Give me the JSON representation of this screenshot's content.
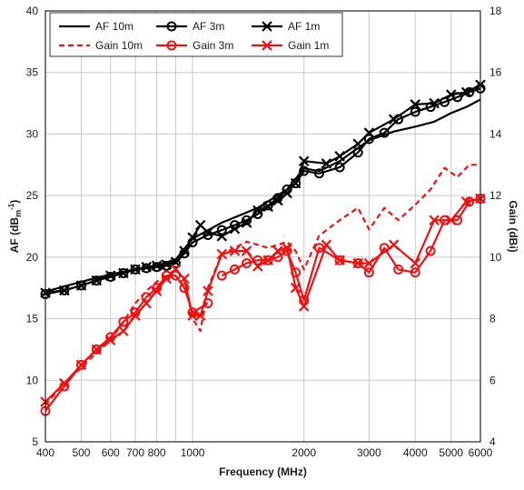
{
  "chart_data": {
    "type": "line",
    "xlabel": "Frequency (MHz)",
    "ylabel_left": "AF (dB",
    "ylabel_left_unit": "m",
    "ylabel_left_exp": "-1",
    "ylabel_left_close": ")",
    "ylabel_right": "Gain (dBi)",
    "x_scale": "log",
    "xlim": [
      400,
      6000
    ],
    "ylim_left": [
      5,
      40
    ],
    "ylim_right": [
      4,
      18
    ],
    "grid": true,
    "legend_position": "top-left",
    "x_ticks": [
      {
        "value": 400,
        "label": "400"
      },
      {
        "value": 500,
        "label": "500"
      },
      {
        "value": 600,
        "label": "600"
      },
      {
        "value": 700,
        "label": "700"
      },
      {
        "value": 800,
        "label": "800"
      },
      {
        "value": 1000,
        "label": "1000"
      },
      {
        "value": 2000,
        "label": "2000"
      },
      {
        "value": 3000,
        "label": "3000"
      },
      {
        "value": 4000,
        "label": "4000"
      },
      {
        "value": 5000,
        "label": "5000"
      },
      {
        "value": 6000,
        "label": "6000"
      }
    ],
    "x_minor_grid": [
      900
    ],
    "y_left_ticks": [
      5,
      10,
      15,
      20,
      25,
      30,
      35,
      40
    ],
    "y_right_ticks": [
      4,
      6,
      8,
      10,
      12,
      14,
      16,
      18
    ],
    "series": [
      {
        "name": "AF 10m",
        "axis": "left",
        "color": "#000000",
        "dash": "solid",
        "marker": "none",
        "x": [
          400,
          500,
          600,
          700,
          800,
          900,
          1000,
          1200,
          1500,
          1800,
          2000,
          2200,
          2500,
          3000,
          3500,
          4000,
          4500,
          5000,
          5500,
          6000
        ],
        "y": [
          17.2,
          18.0,
          18.6,
          19.0,
          19.3,
          19.8,
          21.5,
          22.8,
          24.0,
          25.5,
          27.2,
          27.0,
          27.8,
          29.5,
          30.2,
          30.6,
          31.0,
          31.7,
          32.2,
          32.8
        ]
      },
      {
        "name": "AF 3m",
        "axis": "left",
        "color": "#000000",
        "dash": "solid",
        "marker": "circle",
        "x": [
          400,
          450,
          500,
          550,
          600,
          650,
          700,
          750,
          800,
          850,
          900,
          950,
          1000,
          1100,
          1200,
          1300,
          1400,
          1500,
          1600,
          1700,
          1800,
          1900,
          2000,
          2200,
          2500,
          2800,
          3000,
          3300,
          3600,
          4000,
          4400,
          4800,
          5200,
          5600,
          6000
        ],
        "y": [
          17.0,
          17.3,
          17.7,
          18.1,
          18.4,
          18.7,
          19.0,
          19.1,
          19.2,
          19.3,
          19.5,
          20.3,
          21.2,
          21.8,
          22.2,
          22.6,
          23.0,
          23.5,
          24.2,
          24.8,
          25.5,
          26.0,
          27.0,
          26.8,
          27.3,
          28.5,
          29.6,
          30.1,
          31.2,
          31.8,
          32.2,
          32.6,
          33.0,
          33.4,
          33.7
        ]
      },
      {
        "name": "AF 1m",
        "axis": "left",
        "color": "#000000",
        "dash": "solid",
        "marker": "x",
        "x": [
          400,
          450,
          500,
          550,
          600,
          650,
          700,
          750,
          800,
          850,
          900,
          950,
          1000,
          1050,
          1100,
          1200,
          1300,
          1400,
          1500,
          1600,
          1700,
          1800,
          1900,
          2000,
          2300,
          2500,
          2800,
          3000,
          3500,
          4000,
          4500,
          5000,
          5500,
          6000
        ],
        "y": [
          17.1,
          17.3,
          17.7,
          18.1,
          18.5,
          18.7,
          19.0,
          19.2,
          19.3,
          19.4,
          19.6,
          20.5,
          21.6,
          22.6,
          22.0,
          21.7,
          22.3,
          22.8,
          23.8,
          24.1,
          24.6,
          25.2,
          26.0,
          27.8,
          27.6,
          28.2,
          29.2,
          30.1,
          31.2,
          32.4,
          32.5,
          33.2,
          33.4,
          34.0
        ]
      },
      {
        "name": "Gain 10m",
        "axis": "right",
        "color": "#ee1111",
        "dash": "dashed",
        "marker": "none",
        "x": [
          400,
          450,
          500,
          550,
          600,
          650,
          700,
          750,
          800,
          850,
          900,
          950,
          1000,
          1050,
          1100,
          1200,
          1300,
          1400,
          1500,
          1600,
          1700,
          1800,
          1900,
          2000,
          2200,
          2500,
          2800,
          3000,
          3300,
          3600,
          4000,
          4400,
          4800,
          5200,
          5600,
          6000
        ],
        "y": [
          5.2,
          5.9,
          6.4,
          6.9,
          7.3,
          7.9,
          8.5,
          8.9,
          9.2,
          9.4,
          9.6,
          9.3,
          8.0,
          7.6,
          9.0,
          10.1,
          10.3,
          10.5,
          10.4,
          10.3,
          10.4,
          10.5,
          10.2,
          9.6,
          10.7,
          11.2,
          11.6,
          10.9,
          11.6,
          11.2,
          11.7,
          12.2,
          12.9,
          12.6,
          13.0,
          13.0
        ]
      },
      {
        "name": "Gain 3m",
        "axis": "right",
        "color": "#ee1111",
        "dash": "solid",
        "marker": "circle",
        "x": [
          400,
          450,
          500,
          550,
          600,
          650,
          700,
          750,
          800,
          850,
          900,
          950,
          1000,
          1100,
          1150,
          1200,
          1300,
          1400,
          1500,
          1600,
          1700,
          1800,
          1900,
          2000,
          2200,
          2500,
          2800,
          3000,
          3300,
          3600,
          4000,
          4400,
          4800,
          5200,
          5600,
          6000
        ],
        "y": [
          5.0,
          5.8,
          6.5,
          7.0,
          7.4,
          7.9,
          8.2,
          8.7,
          9.0,
          9.4,
          9.4,
          9.0,
          8.2,
          8.5,
          null,
          9.4,
          9.6,
          9.8,
          9.9,
          9.9,
          10.0,
          10.2,
          9.5,
          8.6,
          10.3,
          9.9,
          9.8,
          9.5,
          10.3,
          9.6,
          9.5,
          10.2,
          11.2,
          11.2,
          11.8,
          11.9
        ]
      },
      {
        "name": "Gain 1m",
        "axis": "right",
        "color": "#ee1111",
        "dash": "solid",
        "marker": "x",
        "x": [
          400,
          450,
          500,
          550,
          600,
          650,
          700,
          750,
          800,
          850,
          900,
          950,
          1000,
          1050,
          1100,
          1200,
          1300,
          1400,
          1500,
          1600,
          1700,
          1800,
          1900,
          2000,
          2300,
          2500,
          2800,
          3000,
          3500,
          4000,
          4500,
          5000,
          5500,
          6000
        ],
        "y": [
          5.3,
          5.9,
          6.5,
          7.0,
          7.3,
          7.6,
          8.1,
          8.5,
          8.9,
          9.3,
          9.6,
          9.3,
          8.1,
          8.1,
          8.9,
          10.1,
          10.2,
          10.2,
          9.7,
          9.9,
          10.2,
          10.3,
          9.0,
          8.4,
          10.4,
          9.9,
          9.8,
          9.8,
          10.4,
          9.8,
          11.2,
          11.2,
          11.8,
          11.9
        ]
      }
    ]
  }
}
